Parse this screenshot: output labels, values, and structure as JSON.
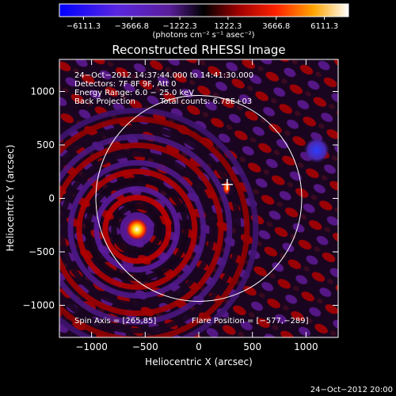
{
  "colorbar": {
    "ticks": [
      "−6111.3",
      "−3666.8",
      "−1222.3",
      "1222.3",
      "3666.8",
      "6111.3"
    ],
    "tick_values": [
      -6111.3,
      -3666.8,
      -1222.3,
      1222.3,
      3666.8,
      6111.3
    ],
    "range": [
      -7333.6,
      7333.6
    ],
    "unit_label": "(photons cm⁻² s⁻¹ asec⁻²)",
    "colors": [
      "#0000ff",
      "#6a2ad0",
      "#4a1a8a",
      "#000000",
      "#a00000",
      "#ff2000",
      "#ffa000",
      "#ffffff"
    ]
  },
  "info": {
    "time": "24−Oct−2012 14:37:44.000 to 14:41:30.000",
    "detectors": "Detectors: 7F 8F 9F, Att 0",
    "energy": "Energy Range: 6.0 − 25.0 keV",
    "method": "Back Projection",
    "counts": "Total counts: 6.78E+03",
    "spin_axis": "Spin Axis = [265,85]",
    "flare_position": "Flare Position = [−577,−289]"
  },
  "timestamp": "24−Oct−2012 20:00",
  "chart_data": {
    "type": "heatmap",
    "title": "Reconstructed RHESSI Image",
    "xlabel": "Heliocentric X (arcsec)",
    "ylabel": "Heliocentric Y (arcsec)",
    "xlim": [
      -1300,
      1300
    ],
    "ylim": [
      -1300,
      1300
    ],
    "xticks": [
      -1000,
      -500,
      0,
      500,
      1000
    ],
    "yticks": [
      -1000,
      -500,
      0,
      500,
      1000
    ],
    "xtick_labels": [
      "−1000",
      "−500",
      "0",
      "500",
      "1000"
    ],
    "ytick_labels": [
      "−1000",
      "−500",
      "0",
      "500",
      "1000"
    ],
    "solar_limb_radius_arcsec": 960,
    "flare_source": [
      -577,
      -289
    ],
    "secondary_source": [
      260,
      100
    ],
    "dark_spot": [
      1100,
      450
    ],
    "sun_center_marker": [
      265,
      130
    ]
  }
}
